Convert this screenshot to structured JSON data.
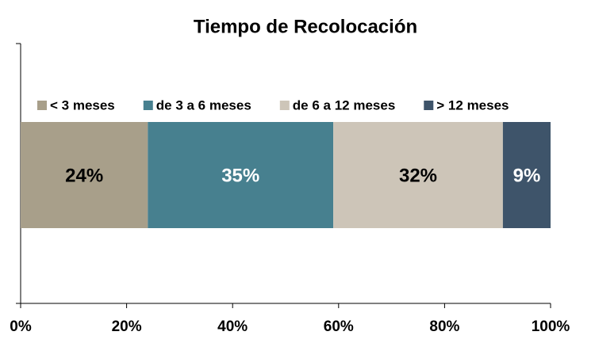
{
  "chart_data": {
    "type": "stacked_bar",
    "orientation": "horizontal",
    "title": "Tiempo de Recolocación",
    "series": [
      {
        "name": "< 3 meses",
        "color": "#a89f8a",
        "label_color": "#000000",
        "values": [
          24
        ],
        "value_labels": [
          "24%"
        ]
      },
      {
        "name": "de 3 a 6 meses",
        "color": "#47808f",
        "label_color": "#ffffff",
        "values": [
          35
        ],
        "value_labels": [
          "35%"
        ]
      },
      {
        "name": "de 6 a 12 meses",
        "color": "#cdc5b8",
        "label_color": "#000000",
        "values": [
          32
        ],
        "value_labels": [
          "32%"
        ]
      },
      {
        "name": "> 12 meses",
        "color": "#3e546a",
        "label_color": "#ffffff",
        "values": [
          9
        ],
        "value_labels": [
          "9%"
        ]
      }
    ],
    "xlim": [
      0,
      100
    ],
    "xticks": [
      {
        "value": 0,
        "label": "0%"
      },
      {
        "value": 20,
        "label": "20%"
      },
      {
        "value": 40,
        "label": "40%"
      },
      {
        "value": 60,
        "label": "60%"
      },
      {
        "value": 80,
        "label": "80%"
      },
      {
        "value": 100,
        "label": "100%"
      }
    ],
    "legend": "top",
    "grid": false
  }
}
